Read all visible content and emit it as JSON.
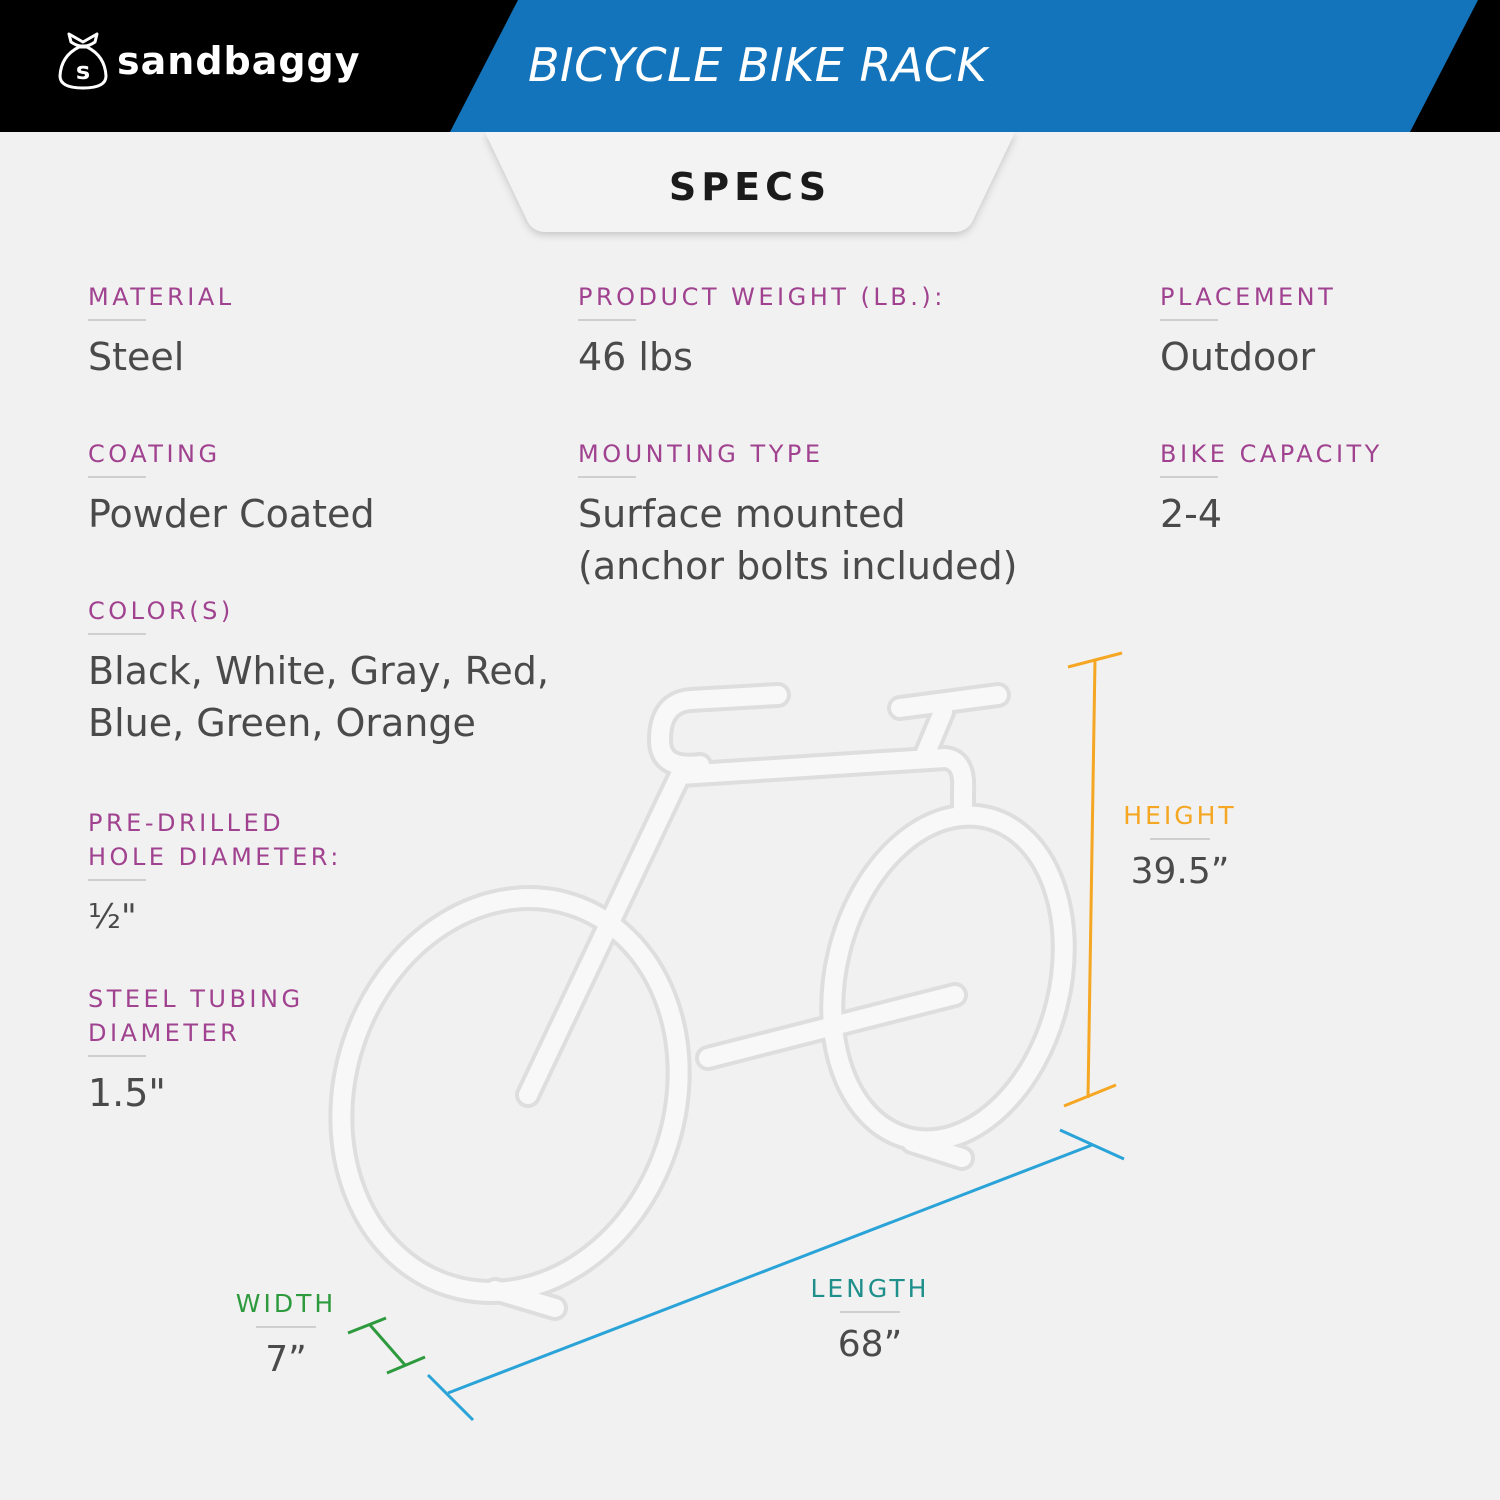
{
  "brand": {
    "name": "sandbaggy",
    "bag_letter": "s"
  },
  "header": {
    "title": "BICYCLE BIKE RACK"
  },
  "section": {
    "label": "SPECS"
  },
  "colors": {
    "blue": "#1374bb",
    "label_purple": "#a0428f",
    "height_orange": "#f5a623",
    "length_blue": "#2aa3d8",
    "width_green": "#2d9a3d",
    "length_label_teal": "#1f8f8c"
  },
  "specs": {
    "material": {
      "label": "MATERIAL",
      "value": "Steel"
    },
    "weight": {
      "label": "PRODUCT WEIGHT (LB.):",
      "value": "46 lbs"
    },
    "placement": {
      "label": "PLACEMENT",
      "value": "Outdoor"
    },
    "coating": {
      "label": "COATING",
      "value": "Powder Coated"
    },
    "mounting": {
      "label": "MOUNTING TYPE",
      "value_line1": "Surface mounted",
      "value_line2": "(anchor bolts included)"
    },
    "capacity": {
      "label": "BIKE CAPACITY",
      "value": "2-4"
    },
    "colors": {
      "label": "COLOR(S)",
      "value_line1": "Black, White, Gray, Red,",
      "value_line2": "Blue, Green, Orange"
    },
    "hole": {
      "label_line1": "PRE-DRILLED",
      "label_line2": "HOLE DIAMETER:",
      "value": "½\""
    },
    "tubing": {
      "label_line1": "STEEL TUBING",
      "label_line2": "DIAMETER",
      "value": "1.5\""
    }
  },
  "dimensions": {
    "height": {
      "label": "HEIGHT",
      "value": "39.5”"
    },
    "length": {
      "label": "LENGTH",
      "value": "68”"
    },
    "width": {
      "label": "WIDTH",
      "value": "7”"
    }
  },
  "icons": {
    "logo": "money-bag-icon",
    "product": "bike-rack-illustration"
  }
}
